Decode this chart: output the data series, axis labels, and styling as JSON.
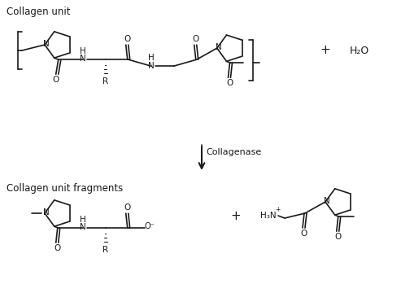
{
  "title_top": "Collagen unit",
  "title_bottom": "Collagen unit fragments",
  "enzyme_label": "Collagenase",
  "bg_color": "#ffffff",
  "line_color": "#000000",
  "text_color": "#1a1a1a",
  "font_size_title": 8.5,
  "font_size_atom": 7.5,
  "font_size_enzyme": 8,
  "figsize": [
    4.93,
    3.6
  ],
  "dpi": 100
}
